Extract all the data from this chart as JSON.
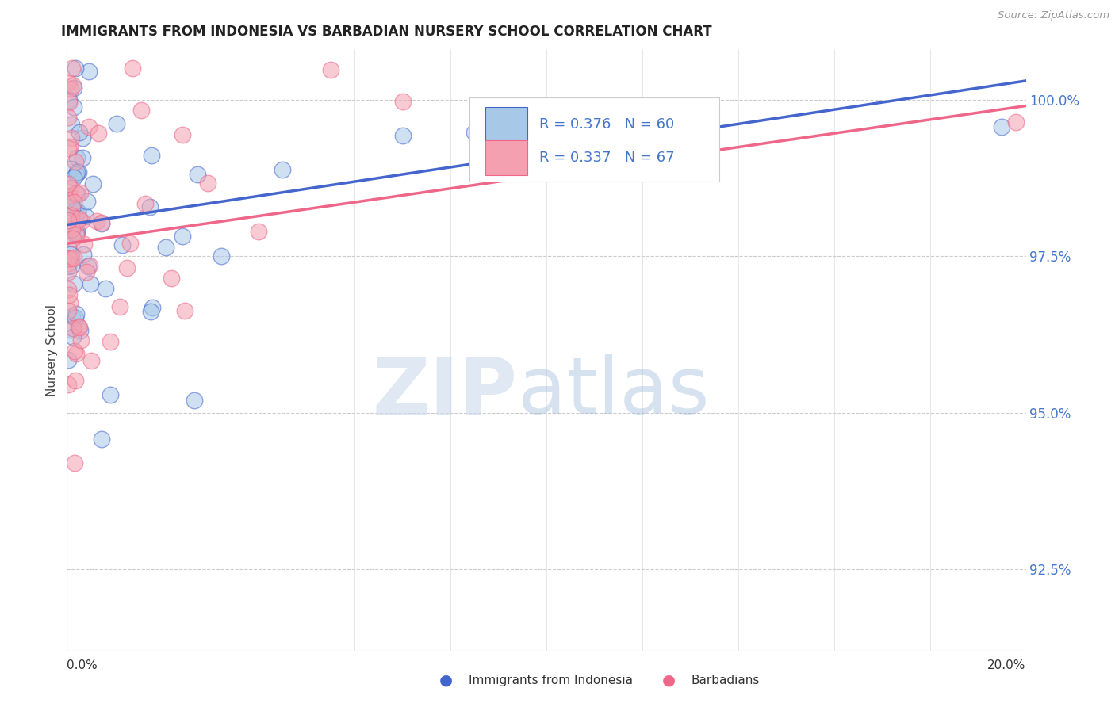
{
  "title": "IMMIGRANTS FROM INDONESIA VS BARBADIAN NURSERY SCHOOL CORRELATION CHART",
  "source": "Source: ZipAtlas.com",
  "ylabel": "Nursery School",
  "yticks": [
    92.5,
    95.0,
    97.5,
    100.0
  ],
  "ytick_labels": [
    "92.5%",
    "95.0%",
    "97.5%",
    "100.0%"
  ],
  "xmin": 0.0,
  "xmax": 20.0,
  "ymin": 91.2,
  "ymax": 100.8,
  "legend_label1": "Immigrants from Indonesia",
  "legend_label2": "Barbadians",
  "R1": 0.376,
  "N1": 60,
  "R2": 0.337,
  "N2": 67,
  "color_blue": "#A8C8E8",
  "color_pink": "#F4A0B0",
  "color_blue_line": "#4466CC",
  "color_pink_line": "#EE6688",
  "color_blue_text": "#4477CC",
  "trend_blue_x0": 0.0,
  "trend_blue_y0": 98.0,
  "trend_blue_x1": 20.0,
  "trend_blue_y1": 100.3,
  "trend_pink_x0": 0.0,
  "trend_pink_y0": 97.7,
  "trend_pink_x1": 20.0,
  "trend_pink_y1": 99.9
}
